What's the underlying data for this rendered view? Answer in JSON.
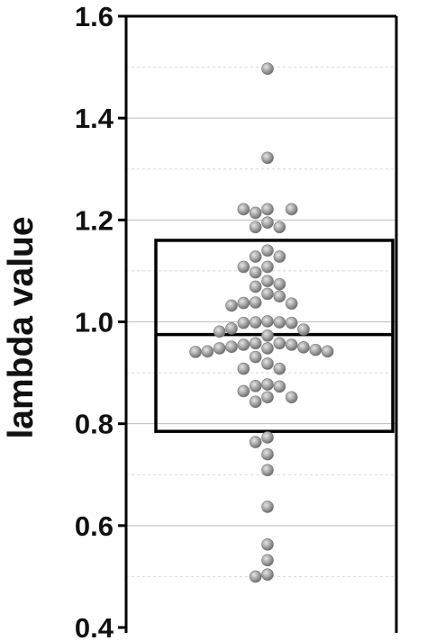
{
  "chart_data": {
    "type": "scatter",
    "title": "",
    "xlabel": "",
    "ylabel": "lambda value",
    "ylim": [
      0.4,
      1.6
    ],
    "y_ticks": [
      {
        "value": 0.4,
        "label": "0.4"
      },
      {
        "value": 0.6,
        "label": "0.6"
      },
      {
        "value": 0.8,
        "label": "0.8"
      },
      {
        "value": 1.0,
        "label": "1.0"
      },
      {
        "value": 1.2,
        "label": "1.2"
      },
      {
        "value": 1.4,
        "label": "1.4"
      },
      {
        "value": 1.6,
        "label": "1.6"
      }
    ],
    "grid": "major solid, minor dashed",
    "box": {
      "q1": 0.785,
      "median": 0.975,
      "q3": 1.16
    },
    "points": [
      1.497,
      1.322,
      1.221,
      1.221,
      1.214,
      1.221,
      1.186,
      1.186,
      1.195,
      1.14,
      1.128,
      1.128,
      1.097,
      1.108,
      1.108,
      1.08,
      1.074,
      1.069,
      1.055,
      1.05,
      1.032,
      1.036,
      1.038,
      1.037,
      1.001,
      0.999,
      0.987,
      0.981,
      0.999,
      0.998,
      0.998,
      0.985,
      0.958,
      0.958,
      0.955,
      0.955,
      0.951,
      0.95,
      0.948,
      0.948,
      0.945,
      0.942,
      0.942,
      0.941,
      0.931,
      0.908,
      0.908,
      0.918,
      0.973,
      0.877,
      0.874,
      0.873,
      0.864,
      0.852,
      0.852,
      0.843,
      0.773,
      0.764,
      0.74,
      0.709,
      0.637,
      0.563,
      0.532,
      0.504,
      0.5
    ],
    "colors": {
      "point": "#a0a0a0",
      "box": "#000000",
      "grid": "#bdbdbd",
      "axis": "#000000"
    }
  }
}
